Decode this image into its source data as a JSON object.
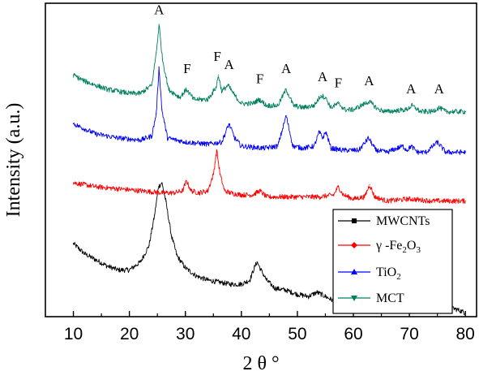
{
  "chart_data": {
    "type": "line",
    "xlabel": "2 θ °",
    "ylabel": "Intensity (a.u.)",
    "xlim": [
      5,
      82
    ],
    "x_ticks": [
      10,
      20,
      30,
      40,
      50,
      60,
      70,
      80
    ],
    "y_ticks_shown": false,
    "grid": false,
    "legend_position": "bottom-right",
    "series": [
      {
        "name": "MWCNTs",
        "legend_parts": [
          "MWCNTs"
        ],
        "color": "#000000",
        "marker": "square",
        "x": [
          10,
          12,
          14,
          16,
          18,
          20,
          22,
          23.5,
          24.5,
          25.2,
          25.8,
          26.5,
          27.5,
          28.5,
          30,
          32,
          34,
          36,
          38,
          40,
          41.5,
          42.3,
          42.8,
          43.5,
          44.5,
          46,
          48,
          50,
          52,
          53.5,
          55,
          57,
          60,
          63,
          66,
          70,
          74,
          78,
          80
        ],
        "y": [
          0.34,
          0.29,
          0.26,
          0.23,
          0.21,
          0.21,
          0.25,
          0.33,
          0.48,
          0.62,
          0.64,
          0.55,
          0.38,
          0.28,
          0.22,
          0.18,
          0.16,
          0.15,
          0.14,
          0.14,
          0.16,
          0.22,
          0.25,
          0.21,
          0.16,
          0.12,
          0.11,
          0.09,
          0.08,
          0.1,
          0.08,
          0.05,
          0.04,
          0.03,
          0.02,
          0.02,
          0.01,
          0.02,
          0.0
        ]
      },
      {
        "name": "γ-Fe2O3",
        "legend_parts": [
          "γ -Fe",
          "2",
          "O",
          "3"
        ],
        "color": "#ff0000",
        "marker": "diamond",
        "x": [
          10,
          14,
          18,
          22,
          26,
          28,
          29.5,
          30.2,
          31,
          32.5,
          34,
          35,
          35.6,
          36.2,
          37,
          38,
          40,
          42,
          43.3,
          44.5,
          47,
          50,
          54,
          56.5,
          57.3,
          58.2,
          60,
          62,
          62.9,
          63.8,
          66,
          70,
          74,
          78,
          80
        ],
        "y": [
          0.64,
          0.62,
          0.61,
          0.6,
          0.59,
          0.59,
          0.6,
          0.65,
          0.6,
          0.59,
          0.6,
          0.68,
          0.8,
          0.68,
          0.6,
          0.59,
          0.58,
          0.58,
          0.6,
          0.57,
          0.57,
          0.57,
          0.57,
          0.58,
          0.62,
          0.58,
          0.56,
          0.57,
          0.63,
          0.57,
          0.55,
          0.56,
          0.55,
          0.55,
          0.55
        ]
      },
      {
        "name": "TiO2",
        "legend_parts": [
          "TiO",
          "2"
        ],
        "color": "#0000ff",
        "marker": "triangle-up",
        "x": [
          10,
          14,
          18,
          22,
          24,
          24.8,
          25.3,
          25.8,
          26.8,
          30,
          34,
          36.5,
          37.8,
          38.8,
          40,
          44,
          46.5,
          48,
          49.2,
          51,
          53,
          53.9,
          54.5,
          55.1,
          56,
          58,
          61,
          62.7,
          64,
          66,
          68.8,
          69.6,
          70.3,
          71.5,
          73,
          75,
          76.5,
          78,
          80
        ],
        "y": [
          0.93,
          0.88,
          0.86,
          0.85,
          0.87,
          0.98,
          1.21,
          1.0,
          0.86,
          0.84,
          0.83,
          0.84,
          0.93,
          0.86,
          0.82,
          0.81,
          0.82,
          0.97,
          0.82,
          0.81,
          0.82,
          0.89,
          0.86,
          0.89,
          0.81,
          0.8,
          0.8,
          0.86,
          0.8,
          0.79,
          0.82,
          0.8,
          0.82,
          0.79,
          0.79,
          0.84,
          0.79,
          0.79,
          0.79
        ]
      },
      {
        "name": "MCT",
        "legend_parts": [
          "MCT"
        ],
        "color": "#008060",
        "marker": "triangle-down",
        "x": [
          10,
          12,
          14,
          16,
          18,
          20,
          22,
          24,
          24.8,
          25.3,
          25.9,
          27,
          29,
          30.2,
          31.5,
          34,
          35.5,
          35.9,
          36.5,
          37.6,
          38.8,
          40,
          42,
          43.2,
          44.5,
          46.5,
          48,
          49.3,
          51,
          53,
          54.2,
          55,
          56,
          57.3,
          58.5,
          60,
          62.8,
          64.5,
          66,
          69.5,
          70.5,
          72,
          74,
          75.3,
          76.5,
          78,
          80
        ],
        "y": [
          1.17,
          1.14,
          1.12,
          1.1,
          1.09,
          1.08,
          1.08,
          1.12,
          1.28,
          1.42,
          1.25,
          1.1,
          1.06,
          1.1,
          1.05,
          1.05,
          1.11,
          1.17,
          1.09,
          1.12,
          1.07,
          1.03,
          1.03,
          1.05,
          1.02,
          1.02,
          1.1,
          1.02,
          1.01,
          1.02,
          1.07,
          1.06,
          1.01,
          1.03,
          1.0,
          1.0,
          1.04,
          1.0,
          0.99,
          1.0,
          1.02,
          0.99,
          0.99,
          1.01,
          0.99,
          0.99,
          0.99
        ]
      }
    ],
    "annotations": [
      {
        "text": "A",
        "x": 25.3,
        "y": 1.47
      },
      {
        "text": "F",
        "x": 30.3,
        "y": 1.18
      },
      {
        "text": "F",
        "x": 35.7,
        "y": 1.24
      },
      {
        "text": "A",
        "x": 37.8,
        "y": 1.2
      },
      {
        "text": "F",
        "x": 43.3,
        "y": 1.13
      },
      {
        "text": "A",
        "x": 48.0,
        "y": 1.18
      },
      {
        "text": "A",
        "x": 54.5,
        "y": 1.14
      },
      {
        "text": "F",
        "x": 57.3,
        "y": 1.11
      },
      {
        "text": "A",
        "x": 62.8,
        "y": 1.12
      },
      {
        "text": "A",
        "x": 70.3,
        "y": 1.08
      },
      {
        "text": "A",
        "x": 75.3,
        "y": 1.08
      }
    ]
  }
}
